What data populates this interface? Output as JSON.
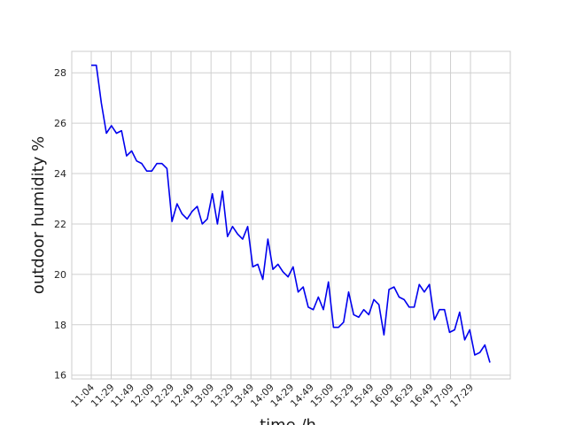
{
  "chart_data": {
    "type": "line",
    "title": "",
    "xlabel": "time /h",
    "ylabel": "outdoor humidity   %",
    "ylim": [
      15.85,
      28.85
    ],
    "yticks": [
      16,
      18,
      20,
      22,
      24,
      26,
      28
    ],
    "grid": true,
    "line_color": "#0000ee",
    "x_tick_labels": [
      "11:04",
      "11:29",
      "11:49",
      "12:09",
      "12:29",
      "12:49",
      "13:09",
      "13:29",
      "13:49",
      "14:09",
      "14:29",
      "14:49",
      "15:09",
      "15:29",
      "15:49",
      "16:09",
      "16:29",
      "16:49",
      "17:09",
      "17:29"
    ],
    "series": [
      {
        "values": [
          28.3,
          28.3,
          26.8,
          25.6,
          25.9,
          25.6,
          25.7,
          24.7,
          24.9,
          24.5,
          24.4,
          24.1,
          24.1,
          24.4,
          24.4,
          24.2,
          22.1,
          22.8,
          22.4,
          22.2,
          22.5,
          22.7,
          22.0,
          22.2,
          23.2,
          22.0,
          23.3,
          21.5,
          21.9,
          21.6,
          21.4,
          21.9,
          20.3,
          20.4,
          19.8,
          21.4,
          20.2,
          20.4,
          20.1,
          19.9,
          20.3,
          19.3,
          19.5,
          18.7,
          18.6,
          19.1,
          18.6,
          19.7,
          17.9,
          17.9,
          18.1,
          19.3,
          18.4,
          18.3,
          18.6,
          18.4,
          19.0,
          18.8,
          17.6,
          19.4,
          19.5,
          19.1,
          19.0,
          18.7,
          18.7,
          19.6,
          19.3,
          19.6,
          18.2,
          18.6,
          18.6,
          17.7,
          17.8,
          18.5,
          17.4,
          17.8,
          16.8,
          16.9,
          17.2,
          16.5
        ]
      }
    ]
  }
}
